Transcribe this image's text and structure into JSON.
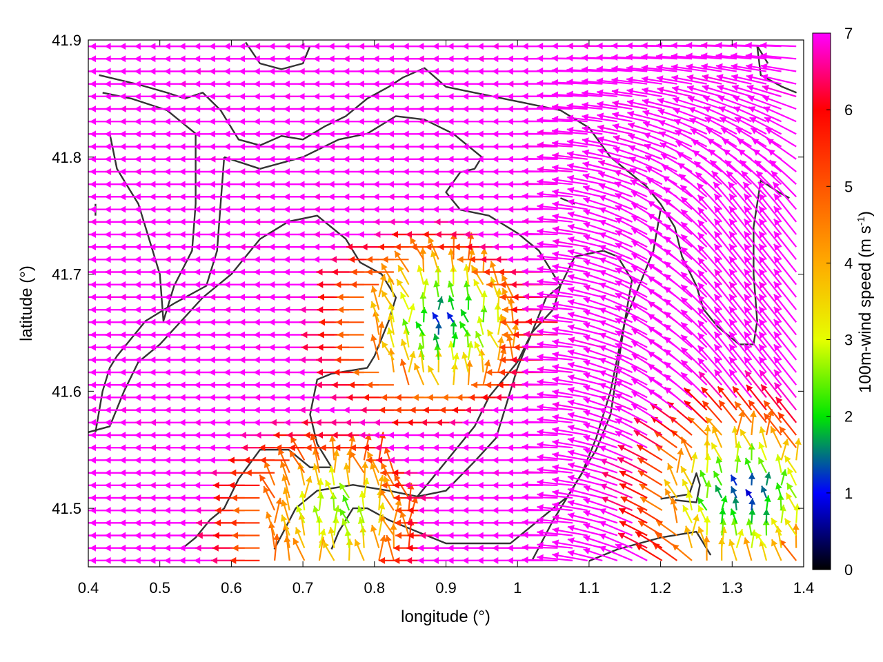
{
  "chart_data": {
    "type": "vector-field",
    "title": "",
    "xlabel": "longitude (°)",
    "ylabel": "latitude (°)",
    "xlim": [
      0.4,
      1.4
    ],
    "ylim": [
      41.45,
      41.9
    ],
    "x_ticks": [
      0.4,
      0.5,
      0.6,
      0.7,
      0.8,
      0.9,
      1.0,
      1.1,
      1.2,
      1.3,
      1.4
    ],
    "x_tick_labels": [
      "0.4",
      "0.5",
      "0.6",
      "0.7",
      "0.8",
      "0.9",
      "1",
      "1.1",
      "1.2",
      "1.3",
      "1.4"
    ],
    "y_ticks": [
      41.5,
      41.6,
      41.7,
      41.8,
      41.9
    ],
    "y_tick_labels": [
      "41.5",
      "41.6",
      "41.7",
      "41.8",
      "41.9"
    ],
    "colorbar": {
      "label_main": "100m-wind speed (m s",
      "label_sup": "-1",
      "label_end": ")",
      "range": [
        0,
        7
      ],
      "ticks": [
        0,
        1,
        2,
        3,
        4,
        5,
        6,
        7
      ],
      "tick_labels": [
        "0",
        "1",
        "2",
        "3",
        "4",
        "5",
        "6",
        "7"
      ]
    },
    "calm_zones": [
      {
        "lon": 0.9,
        "lat": 41.655,
        "min_speed": 1.2
      },
      {
        "lon": 1.32,
        "lat": 41.505,
        "min_speed": 0.8
      },
      {
        "lon": 0.75,
        "lat": 41.49,
        "min_speed": 2.2
      }
    ],
    "grid": false,
    "legend": "colorbar-right",
    "contours": [
      {
        "name": "",
        "points": [
          [
            0.415,
            41.87
          ],
          [
            0.47,
            41.862
          ],
          [
            0.51,
            41.855
          ],
          [
            0.535,
            41.85
          ],
          [
            0.56,
            41.855
          ],
          [
            0.585,
            41.84
          ],
          [
            0.61,
            41.815
          ],
          [
            0.64,
            41.81
          ],
          [
            0.67,
            41.818
          ],
          [
            0.7,
            41.815
          ],
          [
            0.73,
            41.826
          ],
          [
            0.76,
            41.835
          ],
          [
            0.79,
            41.85
          ],
          [
            0.82,
            41.86
          ],
          [
            0.84,
            41.868
          ],
          [
            0.87,
            41.876
          ],
          [
            0.9,
            41.86
          ],
          [
            0.94,
            41.855
          ],
          [
            0.98,
            41.85
          ],
          [
            1.02,
            41.845
          ],
          [
            1.06,
            41.84
          ],
          [
            1.1,
            41.825
          ],
          [
            1.13,
            41.8
          ],
          [
            1.15,
            41.79
          ],
          [
            1.18,
            41.775
          ],
          [
            1.2,
            41.76
          ],
          [
            1.22,
            41.74
          ],
          [
            1.23,
            41.715
          ],
          [
            1.25,
            41.69
          ],
          [
            1.26,
            41.67
          ],
          [
            1.28,
            41.655
          ],
          [
            1.31,
            41.64
          ],
          [
            1.33,
            41.64
          ],
          [
            1.335,
            41.66
          ],
          [
            1.33,
            41.7
          ],
          [
            1.33,
            41.74
          ],
          [
            1.34,
            41.78
          ],
          [
            1.365,
            41.77
          ],
          [
            1.38,
            41.765
          ]
        ]
      },
      {
        "name": "",
        "points": [
          [
            0.42,
            41.855
          ],
          [
            0.46,
            41.85
          ],
          [
            0.51,
            41.84
          ],
          [
            0.54,
            41.825
          ],
          [
            0.55,
            41.82
          ],
          [
            0.55,
            41.76
          ],
          [
            0.545,
            41.72
          ],
          [
            0.52,
            41.69
          ],
          [
            0.505,
            41.66
          ],
          [
            0.5,
            41.7
          ],
          [
            0.48,
            41.74
          ],
          [
            0.47,
            41.76
          ],
          [
            0.45,
            41.78
          ],
          [
            0.44,
            41.79
          ],
          [
            0.43,
            41.82
          ]
        ]
      },
      {
        "name": "",
        "points": [
          [
            0.59,
            41.8
          ],
          [
            0.64,
            41.79
          ],
          [
            0.7,
            41.8
          ],
          [
            0.75,
            41.815
          ],
          [
            0.79,
            41.82
          ],
          [
            0.83,
            41.835
          ],
          [
            0.87,
            41.832
          ],
          [
            0.91,
            41.82
          ],
          [
            0.95,
            41.8
          ],
          [
            0.94,
            41.79
          ],
          [
            0.92,
            41.787
          ],
          [
            0.9,
            41.77
          ],
          [
            0.92,
            41.755
          ],
          [
            0.96,
            41.75
          ],
          [
            1.0,
            41.735
          ],
          [
            1.03,
            41.72
          ],
          [
            1.05,
            41.7
          ],
          [
            1.06,
            41.69
          ],
          [
            1.05,
            41.67
          ],
          [
            1.02,
            41.65
          ],
          [
            1.0,
            41.625
          ],
          [
            0.98,
            41.61
          ],
          [
            0.96,
            41.595
          ],
          [
            0.94,
            41.57
          ],
          [
            0.9,
            41.54
          ],
          [
            0.86,
            41.51
          ]
        ]
      },
      {
        "name": "",
        "points": [
          [
            0.59,
            41.8
          ],
          [
            0.585,
            41.76
          ],
          [
            0.58,
            41.72
          ],
          [
            0.565,
            41.69
          ],
          [
            0.52,
            41.675
          ],
          [
            0.48,
            41.66
          ],
          [
            0.44,
            41.63
          ],
          [
            0.43,
            41.62
          ],
          [
            0.42,
            41.6
          ],
          [
            0.41,
            41.565
          ]
        ]
      },
      {
        "name": "",
        "points": [
          [
            0.4,
            41.565
          ],
          [
            0.43,
            41.57
          ],
          [
            0.45,
            41.6
          ],
          [
            0.47,
            41.625
          ],
          [
            0.5,
            41.64
          ],
          [
            0.53,
            41.66
          ],
          [
            0.56,
            41.68
          ],
          [
            0.6,
            41.7
          ],
          [
            0.64,
            41.73
          ],
          [
            0.68,
            41.745
          ],
          [
            0.72,
            41.75
          ],
          [
            0.76,
            41.73
          ],
          [
            0.78,
            41.71
          ],
          [
            0.81,
            41.7
          ],
          [
            0.83,
            41.68
          ],
          [
            0.82,
            41.66
          ],
          [
            0.8,
            41.63
          ],
          [
            0.79,
            41.62
          ],
          [
            0.74,
            41.615
          ],
          [
            0.72,
            41.61
          ],
          [
            0.71,
            41.58
          ],
          [
            0.72,
            41.555
          ],
          [
            0.74,
            41.535
          ],
          [
            0.71,
            41.535
          ],
          [
            0.68,
            41.55
          ],
          [
            0.64,
            41.55
          ],
          [
            0.61,
            41.525
          ],
          [
            0.59,
            41.5
          ],
          [
            0.57,
            41.49
          ],
          [
            0.55,
            41.475
          ],
          [
            0.53,
            41.465
          ]
        ]
      },
      {
        "name": "",
        "points": [
          [
            0.66,
            41.465
          ],
          [
            0.69,
            41.5
          ],
          [
            0.72,
            41.515
          ],
          [
            0.77,
            41.52
          ],
          [
            0.82,
            41.515
          ],
          [
            0.86,
            41.51
          ],
          [
            0.9,
            41.515
          ],
          [
            0.94,
            41.54
          ],
          [
            0.97,
            41.56
          ],
          [
            1.0,
            41.62
          ],
          [
            1.02,
            41.65
          ],
          [
            1.04,
            41.68
          ],
          [
            1.06,
            41.69
          ],
          [
            1.08,
            41.715
          ],
          [
            1.12,
            41.72
          ],
          [
            1.14,
            41.715
          ],
          [
            1.16,
            41.695
          ],
          [
            1.15,
            41.66
          ],
          [
            1.13,
            41.6
          ],
          [
            1.11,
            41.56
          ],
          [
            1.09,
            41.53
          ],
          [
            1.07,
            41.51
          ],
          [
            1.03,
            41.49
          ],
          [
            0.99,
            41.47
          ],
          [
            0.95,
            41.47
          ],
          [
            0.9,
            41.47
          ],
          [
            0.86,
            41.48
          ],
          [
            0.82,
            41.49
          ],
          [
            0.79,
            41.5
          ],
          [
            0.77,
            41.5
          ],
          [
            0.75,
            41.48
          ],
          [
            0.74,
            41.465
          ]
        ]
      },
      {
        "name": "",
        "points": [
          [
            1.02,
            41.455
          ],
          [
            1.05,
            41.49
          ],
          [
            1.08,
            41.52
          ],
          [
            1.11,
            41.55
          ],
          [
            1.13,
            41.58
          ],
          [
            1.14,
            41.62
          ],
          [
            1.15,
            41.66
          ],
          [
            1.17,
            41.69
          ],
          [
            1.19,
            41.72
          ],
          [
            1.2,
            41.755
          ]
        ]
      },
      {
        "name": "",
        "points": [
          [
            1.2,
            41.508
          ],
          [
            1.24,
            41.512
          ],
          [
            1.25,
            41.53
          ],
          [
            1.255,
            41.52
          ],
          [
            1.25,
            41.505
          ],
          [
            1.22,
            41.507
          ]
        ]
      },
      {
        "name": "",
        "points": [
          [
            1.1,
            41.455
          ],
          [
            1.14,
            41.465
          ],
          [
            1.2,
            41.475
          ],
          [
            1.25,
            41.48
          ],
          [
            1.27,
            41.46
          ]
        ]
      },
      {
        "name": "",
        "points": [
          [
            1.35,
            41.88
          ],
          [
            1.335,
            41.895
          ],
          [
            1.34,
            41.87
          ],
          [
            1.37,
            41.86
          ],
          [
            1.39,
            41.855
          ]
        ]
      },
      {
        "name": "",
        "points": [
          [
            0.62,
            41.898
          ],
          [
            0.64,
            41.88
          ],
          [
            0.67,
            41.875
          ],
          [
            0.7,
            41.88
          ],
          [
            0.71,
            41.895
          ]
        ]
      },
      {
        "name": "",
        "points": [
          [
            0.41,
            41.76
          ],
          [
            0.41,
            41.75
          ]
        ]
      },
      {
        "name": "",
        "points": [
          [
            1.06,
            41.765
          ],
          [
            1.08,
            41.76
          ]
        ]
      }
    ]
  }
}
